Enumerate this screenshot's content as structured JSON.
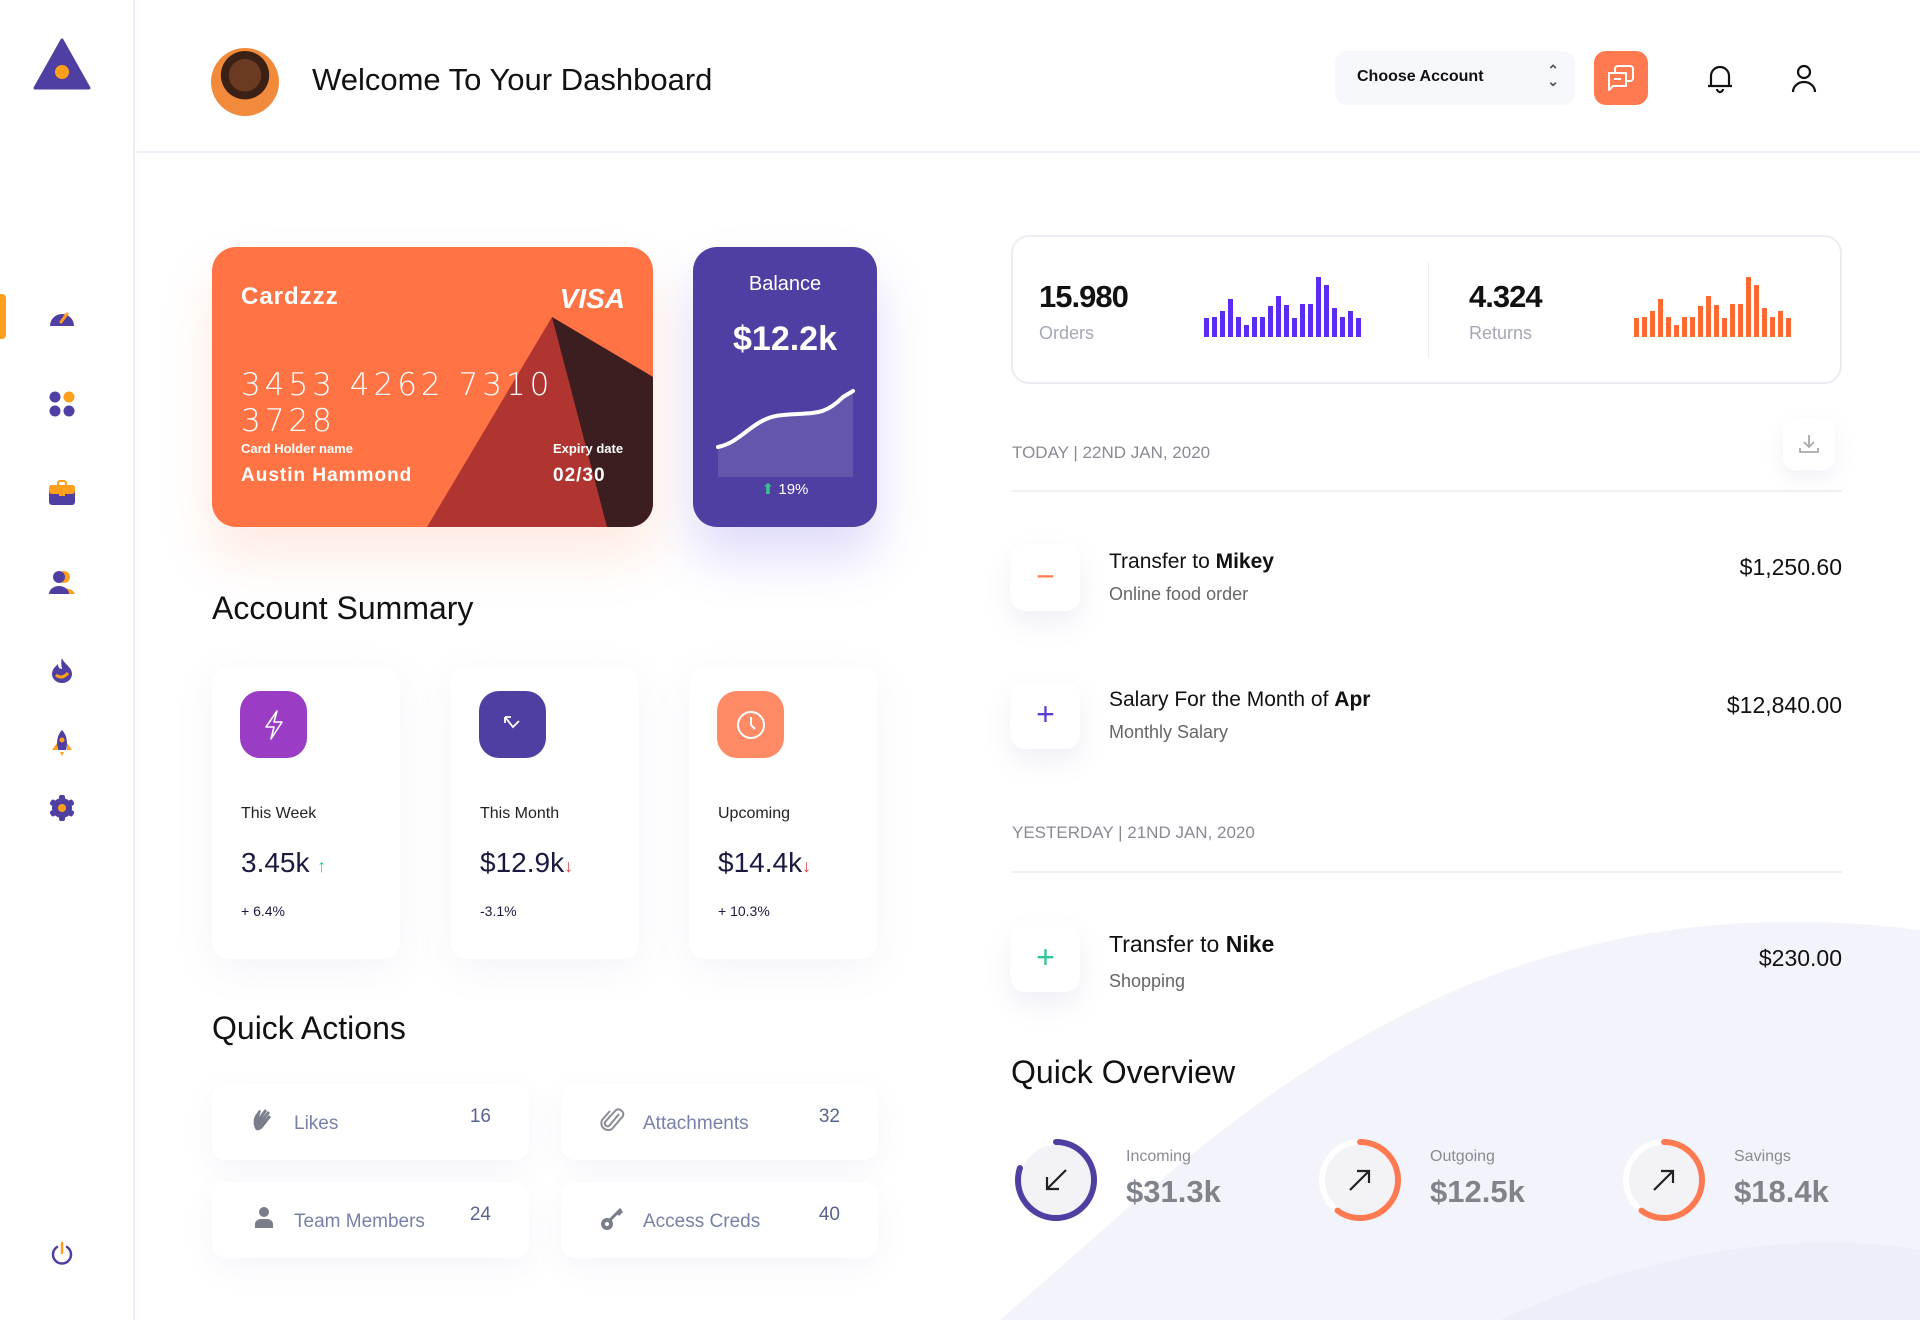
{
  "header": {
    "title": "Welcome To Your Dashboard",
    "account_select": "Choose Account"
  },
  "sidebar": {
    "items": [
      "dashboard",
      "apps",
      "portfolio",
      "users",
      "trending",
      "launch",
      "settings"
    ],
    "active": "dashboard",
    "logout": "power-icon"
  },
  "card": {
    "brand": "Cardzzz",
    "network": "VISA",
    "number": "3453 4262 7310 3728",
    "holder_label": "Card Holder name",
    "holder": "Austin Hammond",
    "expiry_label": "Expiry date",
    "expiry": "02/30"
  },
  "balance": {
    "label": "Balance",
    "amount": "$12.2k",
    "change": "19%"
  },
  "account_summary": {
    "title": "Account Summary",
    "cards": [
      {
        "label": "This Week",
        "value": "3.45k",
        "trend": "up",
        "change": "+ 6.4%",
        "color": "#9b3cc4"
      },
      {
        "label": "This Month",
        "value": "$12.9k",
        "trend": "down",
        "change": "-3.1%",
        "color": "#4f3fa2"
      },
      {
        "label": "Upcoming",
        "value": "$14.4k",
        "trend": "down",
        "change": "+ 10.3%",
        "color": "#ff8a66"
      }
    ]
  },
  "quick_actions": {
    "title": "Quick Actions",
    "items": [
      {
        "label": "Likes",
        "count": "16"
      },
      {
        "label": "Attachments",
        "count": "32"
      },
      {
        "label": "Team Members",
        "count": "24"
      },
      {
        "label": "Access Creds",
        "count": "40"
      }
    ]
  },
  "stats": {
    "orders": {
      "value": "15.980",
      "label": "Orders",
      "color": "#5b2cf6",
      "bars": [
        55,
        60,
        76,
        112,
        60,
        36,
        60,
        60,
        91,
        121,
        95,
        55,
        96,
        96,
        176,
        152,
        84,
        60,
        76,
        55
      ]
    },
    "returns": {
      "value": "4.324",
      "label": "Returns",
      "color": "#ff6a33",
      "bars": [
        55,
        60,
        76,
        112,
        60,
        36,
        60,
        60,
        91,
        121,
        95,
        55,
        96,
        96,
        176,
        152,
        84,
        60,
        76,
        55
      ]
    }
  },
  "transactions": {
    "today_header": "TODAY | 22ND JAN, 2020",
    "yesterday_header": "YESTERDAY | 21ND JAN, 2020",
    "items": [
      {
        "prefix": "Transfer to ",
        "bold": "Mikey",
        "sub": "Online food order",
        "amount": "$1,250.60",
        "sign": "−",
        "color": "#ff7a50"
      },
      {
        "prefix": "Salary For the Month of ",
        "bold": "Apr",
        "sub": "Monthly Salary",
        "amount": "$12,840.00",
        "sign": "+",
        "color": "#5b3fd0"
      },
      {
        "prefix": "Transfer to ",
        "bold": "Nike",
        "sub": "Shopping",
        "amount": "$230.00",
        "sign": "+",
        "color": "#2ec79a"
      }
    ]
  },
  "quick_overview": {
    "title": "Quick Overview",
    "items": [
      {
        "label": "Incoming",
        "value": "$31.3k",
        "progress": 0.8,
        "color": "#4f3fa2",
        "direction": "down-left"
      },
      {
        "label": "Outgoing",
        "value": "$12.5k",
        "progress": 0.6,
        "color": "#ff7a50",
        "direction": "up-right"
      },
      {
        "label": "Savings",
        "value": "$18.4k",
        "progress": 0.6,
        "color": "#ff7a50",
        "direction": "up-right"
      }
    ]
  }
}
